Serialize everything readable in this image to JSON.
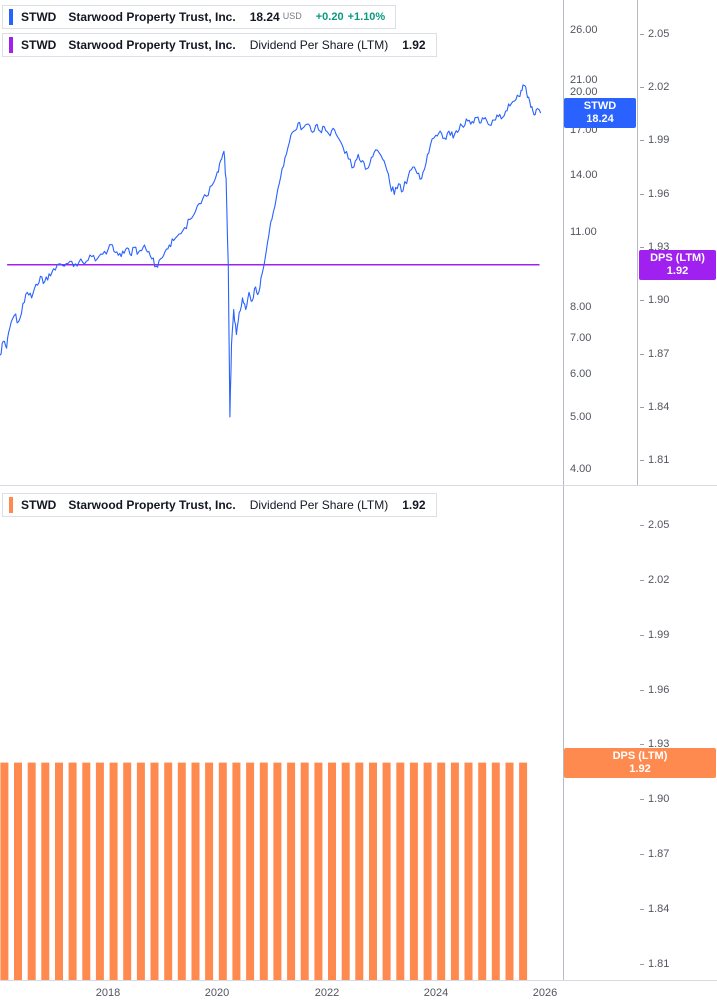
{
  "colors": {
    "price_line": "#2962FF",
    "dps_line": "#A020F0",
    "dps_bar": "#FF8A50",
    "change_positive": "#089981",
    "axis_text": "#52555E",
    "legend_text": "#131722"
  },
  "panes": {
    "top": {
      "legend": [
        {
          "symbol": "STWD",
          "name": "Starwood Property Trust, Inc.",
          "value": "18.24",
          "unit": "USD",
          "change": "+0.20",
          "change_pct": "+1.10%"
        },
        {
          "symbol": "STWD",
          "name": "Starwood Property Trust, Inc.",
          "metric": "Dividend Per Share (LTM)",
          "value": "1.92"
        }
      ],
      "price_axis": {
        "ticks": [
          26,
          21,
          20,
          17,
          14,
          11,
          8,
          7,
          6,
          5,
          4
        ],
        "label": {
          "line1": "STWD",
          "line2": "18.24",
          "value": 18.24
        }
      },
      "dps_axis": {
        "ticks": [
          2.05,
          2.02,
          1.99,
          1.96,
          1.93,
          1.9,
          1.87,
          1.84,
          1.81
        ],
        "label": {
          "line1": "DPS (LTM)",
          "line2": "1.92",
          "value": 1.92
        }
      }
    },
    "bottom": {
      "legend": [
        {
          "symbol": "STWD",
          "name": "Starwood Property Trust, Inc.",
          "metric": "Dividend Per Share (LTM)",
          "value": "1.92"
        }
      ],
      "dps_axis": {
        "ticks": [
          2.05,
          2.02,
          1.99,
          1.96,
          1.93,
          1.9,
          1.87,
          1.84,
          1.81
        ],
        "label": {
          "line1": "DPS (LTM)",
          "line2": "1.92",
          "value": 1.92
        }
      }
    }
  },
  "time_axis": {
    "labels": [
      {
        "label": "2018",
        "t": 2018
      },
      {
        "label": "2020",
        "t": 2020
      },
      {
        "label": "2022",
        "t": 2022
      },
      {
        "label": "2024",
        "t": 2024
      },
      {
        "label": "2026",
        "t": 2026
      }
    ]
  },
  "chart_data": [
    {
      "type": "line",
      "title": "STWD Starwood Property Trust, Inc. price",
      "pane": "top",
      "color": "#2962FF",
      "yscale": "log",
      "ylim": [
        3.74,
        29.54
      ],
      "xlim": [
        2016.02,
        2026.33
      ],
      "last_value": 18.24,
      "points": [
        [
          2016.02,
          6.5
        ],
        [
          2016.08,
          6.9
        ],
        [
          2016.14,
          6.7
        ],
        [
          2016.2,
          7.3
        ],
        [
          2016.28,
          7.7
        ],
        [
          2016.36,
          7.5
        ],
        [
          2016.44,
          8.1
        ],
        [
          2016.52,
          8.5
        ],
        [
          2016.6,
          8.3
        ],
        [
          2016.68,
          8.8
        ],
        [
          2016.76,
          9.1
        ],
        [
          2016.84,
          8.9
        ],
        [
          2016.92,
          9.2
        ],
        [
          2017.0,
          9.4
        ],
        [
          2017.1,
          9.6
        ],
        [
          2017.2,
          9.5
        ],
        [
          2017.3,
          9.7
        ],
        [
          2017.4,
          9.6
        ],
        [
          2017.5,
          9.8
        ],
        [
          2017.6,
          9.7
        ],
        [
          2017.7,
          9.9
        ],
        [
          2017.8,
          9.8
        ],
        [
          2017.9,
          10.0
        ],
        [
          2018.0,
          10.2
        ],
        [
          2018.08,
          10.4
        ],
        [
          2018.16,
          10.1
        ],
        [
          2018.24,
          9.9
        ],
        [
          2018.32,
          10.2
        ],
        [
          2018.4,
          10.0
        ],
        [
          2018.48,
          10.3
        ],
        [
          2018.56,
          10.1
        ],
        [
          2018.64,
          10.3
        ],
        [
          2018.72,
          10.1
        ],
        [
          2018.8,
          9.8
        ],
        [
          2018.88,
          9.5
        ],
        [
          2018.96,
          9.8
        ],
        [
          2019.04,
          10.1
        ],
        [
          2019.12,
          10.4
        ],
        [
          2019.2,
          10.6
        ],
        [
          2019.3,
          10.9
        ],
        [
          2019.4,
          11.2
        ],
        [
          2019.5,
          11.6
        ],
        [
          2019.6,
          12.0
        ],
        [
          2019.7,
          12.4
        ],
        [
          2019.8,
          12.8
        ],
        [
          2019.9,
          13.4
        ],
        [
          2020.0,
          14.2
        ],
        [
          2020.06,
          14.9
        ],
        [
          2020.12,
          15.5
        ],
        [
          2020.16,
          13.8
        ],
        [
          2020.2,
          9.5
        ],
        [
          2020.23,
          5.0
        ],
        [
          2020.26,
          6.8
        ],
        [
          2020.3,
          7.9
        ],
        [
          2020.35,
          7.1
        ],
        [
          2020.4,
          7.8
        ],
        [
          2020.46,
          8.3
        ],
        [
          2020.52,
          7.9
        ],
        [
          2020.58,
          8.5
        ],
        [
          2020.64,
          8.2
        ],
        [
          2020.7,
          8.7
        ],
        [
          2020.76,
          8.5
        ],
        [
          2020.82,
          9.2
        ],
        [
          2020.88,
          9.9
        ],
        [
          2020.94,
          10.8
        ],
        [
          2021.0,
          11.6
        ],
        [
          2021.08,
          12.7
        ],
        [
          2021.16,
          13.9
        ],
        [
          2021.24,
          15.1
        ],
        [
          2021.32,
          16.1
        ],
        [
          2021.4,
          16.9
        ],
        [
          2021.48,
          17.5
        ],
        [
          2021.56,
          17.1
        ],
        [
          2021.64,
          17.4
        ],
        [
          2021.72,
          16.9
        ],
        [
          2021.8,
          17.3
        ],
        [
          2021.88,
          16.9
        ],
        [
          2021.96,
          17.2
        ],
        [
          2022.04,
          16.7
        ],
        [
          2022.12,
          17.1
        ],
        [
          2022.2,
          16.5
        ],
        [
          2022.3,
          15.8
        ],
        [
          2022.4,
          15.0
        ],
        [
          2022.5,
          14.5
        ],
        [
          2022.58,
          15.3
        ],
        [
          2022.66,
          14.9
        ],
        [
          2022.74,
          14.4
        ],
        [
          2022.82,
          15.1
        ],
        [
          2022.9,
          15.6
        ],
        [
          2023.0,
          15.2
        ],
        [
          2023.08,
          14.6
        ],
        [
          2023.16,
          13.5
        ],
        [
          2023.24,
          12.9
        ],
        [
          2023.32,
          13.5
        ],
        [
          2023.4,
          13.1
        ],
        [
          2023.5,
          14.0
        ],
        [
          2023.58,
          14.5
        ],
        [
          2023.66,
          14.1
        ],
        [
          2023.74,
          13.8
        ],
        [
          2023.82,
          14.7
        ],
        [
          2023.9,
          15.9
        ],
        [
          2024.0,
          16.6
        ],
        [
          2024.08,
          16.9
        ],
        [
          2024.16,
          16.4
        ],
        [
          2024.24,
          16.9
        ],
        [
          2024.32,
          16.4
        ],
        [
          2024.4,
          16.8
        ],
        [
          2024.48,
          17.3
        ],
        [
          2024.56,
          17.8
        ],
        [
          2024.64,
          17.4
        ],
        [
          2024.72,
          17.9
        ],
        [
          2024.8,
          17.5
        ],
        [
          2024.88,
          17.8
        ],
        [
          2024.96,
          17.4
        ],
        [
          2025.04,
          17.7
        ],
        [
          2025.12,
          18.1
        ],
        [
          2025.2,
          17.8
        ],
        [
          2025.28,
          18.4
        ],
        [
          2025.36,
          18.8
        ],
        [
          2025.44,
          19.2
        ],
        [
          2025.52,
          19.6
        ],
        [
          2025.58,
          20.1
        ],
        [
          2025.63,
          20.5
        ],
        [
          2025.68,
          19.5
        ],
        [
          2025.74,
          18.7
        ],
        [
          2025.8,
          18.1
        ],
        [
          2025.86,
          18.6
        ],
        [
          2025.92,
          18.24
        ]
      ]
    },
    {
      "type": "line",
      "title": "STWD Dividend Per Share (LTM) overlay",
      "pane": "top",
      "color": "#A020F0",
      "yscale": "linear",
      "ylim": [
        1.796,
        2.069
      ],
      "xlim": [
        2016.02,
        2026.33
      ],
      "points": [
        [
          2016.15,
          1.92
        ],
        [
          2025.9,
          1.92
        ]
      ]
    },
    {
      "type": "bar",
      "title": "STWD Dividend Per Share (LTM)",
      "pane": "bottom",
      "color": "#FF8A50",
      "yscale": "linear",
      "ylim": [
        1.801,
        2.072
      ],
      "xlim": [
        2016.02,
        2026.33
      ],
      "x": [
        2016.1,
        2016.35,
        2016.6,
        2016.85,
        2017.1,
        2017.35,
        2017.6,
        2017.85,
        2018.1,
        2018.35,
        2018.6,
        2018.85,
        2019.1,
        2019.35,
        2019.6,
        2019.85,
        2020.1,
        2020.35,
        2020.6,
        2020.85,
        2021.1,
        2021.35,
        2021.6,
        2021.85,
        2022.1,
        2022.35,
        2022.6,
        2022.85,
        2023.1,
        2023.35,
        2023.6,
        2023.85,
        2024.1,
        2024.35,
        2024.6,
        2024.85,
        2025.1,
        2025.35,
        2025.6
      ],
      "values": [
        1.92,
        1.92,
        1.92,
        1.92,
        1.92,
        1.92,
        1.92,
        1.92,
        1.92,
        1.92,
        1.92,
        1.92,
        1.92,
        1.92,
        1.92,
        1.92,
        1.92,
        1.92,
        1.92,
        1.92,
        1.92,
        1.92,
        1.92,
        1.92,
        1.92,
        1.92,
        1.92,
        1.92,
        1.92,
        1.92,
        1.92,
        1.92,
        1.92,
        1.92,
        1.92,
        1.92,
        1.92,
        1.92,
        1.92
      ]
    }
  ]
}
